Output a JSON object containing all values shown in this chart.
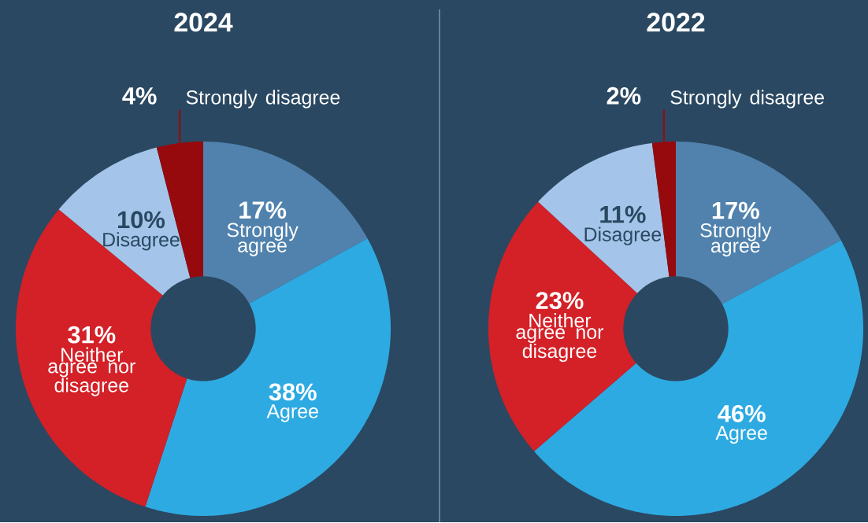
{
  "chart_data": [
    {
      "type": "donut",
      "title": "2024",
      "categories": [
        "Strongly agree",
        "Agree",
        "Neither agree nor disagree",
        "Disagree",
        "Strongly disagree"
      ],
      "values": [
        17,
        38,
        31,
        10,
        4
      ],
      "value_labels": [
        "17%",
        "38%",
        "31%",
        "10%",
        "4%"
      ],
      "colors": [
        "#5082ad",
        "#2eaae2",
        "#d42027",
        "#a4c5e9",
        "#960a0e"
      ]
    },
    {
      "type": "donut",
      "title": "2022",
      "categories": [
        "Strongly agree",
        "Agree",
        "Neither agree nor disagree",
        "Disagree",
        "Strongly disagree"
      ],
      "values": [
        17,
        46,
        23,
        11,
        2
      ],
      "value_labels": [
        "17%",
        "46%",
        "23%",
        "11%",
        "2%"
      ],
      "colors": [
        "#5082ad",
        "#2eaae2",
        "#d42027",
        "#a4c5e9",
        "#960a0e"
      ]
    }
  ]
}
